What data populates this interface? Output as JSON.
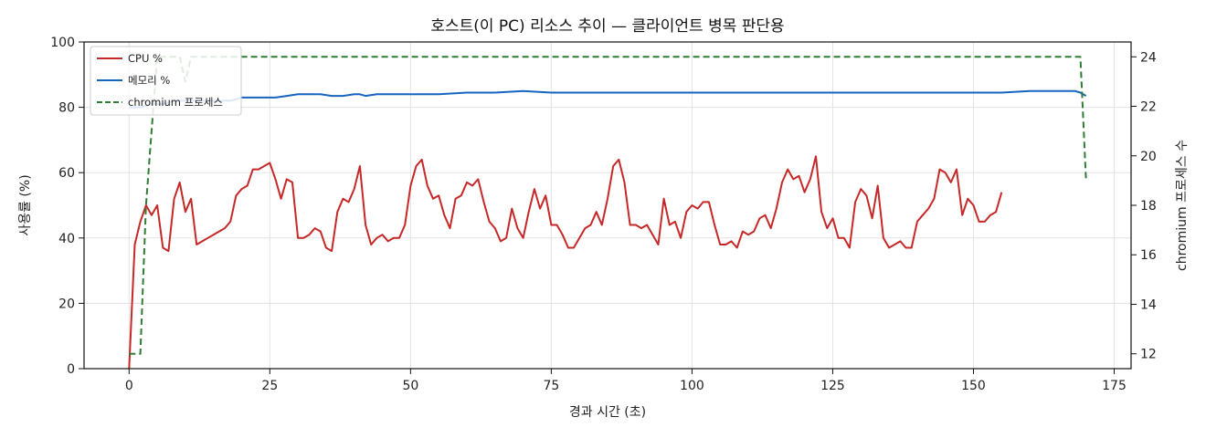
{
  "chart_data": {
    "type": "line",
    "title": "호스트(이 PC) 리소스 추이 — 클라이언트 병목 판단용",
    "xlabel": "경과 시간 (초)",
    "ylabel": "사용률 (%)",
    "y2label": "chromium 프로세스 수",
    "xlim": [
      -8,
      178
    ],
    "ylim": [
      0,
      100
    ],
    "y2lim": [
      11.4,
      24.6
    ],
    "x_ticks": [
      0,
      25,
      50,
      75,
      100,
      125,
      150,
      175
    ],
    "y_ticks": [
      0,
      20,
      40,
      60,
      80,
      100
    ],
    "y2_ticks": [
      12,
      14,
      16,
      18,
      20,
      22,
      24
    ],
    "grid": true,
    "legend_position": "top-left",
    "series": [
      {
        "name": "CPU %",
        "axis": "left",
        "style": "solid",
        "color": "#c62828",
        "points": [
          [
            0,
            0
          ],
          [
            1,
            38
          ],
          [
            2,
            45
          ],
          [
            3,
            50
          ],
          [
            4,
            47
          ],
          [
            5,
            50
          ],
          [
            6,
            37
          ],
          [
            7,
            36
          ],
          [
            8,
            52
          ],
          [
            9,
            57
          ],
          [
            10,
            48
          ],
          [
            11,
            52
          ],
          [
            12,
            38
          ],
          [
            13,
            39
          ],
          [
            14,
            40
          ],
          [
            15,
            41
          ],
          [
            16,
            42
          ],
          [
            17,
            43
          ],
          [
            18,
            45
          ],
          [
            19,
            53
          ],
          [
            20,
            55
          ],
          [
            21,
            56
          ],
          [
            22,
            61
          ],
          [
            23,
            61
          ],
          [
            24,
            62
          ],
          [
            25,
            63
          ],
          [
            26,
            58
          ],
          [
            27,
            52
          ],
          [
            28,
            58
          ],
          [
            29,
            57
          ],
          [
            30,
            40
          ],
          [
            31,
            40
          ],
          [
            32,
            41
          ],
          [
            33,
            43
          ],
          [
            34,
            42
          ],
          [
            35,
            37
          ],
          [
            36,
            36
          ],
          [
            37,
            48
          ],
          [
            38,
            52
          ],
          [
            39,
            51
          ],
          [
            40,
            55
          ],
          [
            41,
            62
          ],
          [
            42,
            44
          ],
          [
            43,
            38
          ],
          [
            44,
            40
          ],
          [
            45,
            41
          ],
          [
            46,
            39
          ],
          [
            47,
            40
          ],
          [
            48,
            40
          ],
          [
            49,
            44
          ],
          [
            50,
            56
          ],
          [
            51,
            62
          ],
          [
            52,
            64
          ],
          [
            53,
            56
          ],
          [
            54,
            52
          ],
          [
            55,
            53
          ],
          [
            56,
            47
          ],
          [
            57,
            43
          ],
          [
            58,
            52
          ],
          [
            59,
            53
          ],
          [
            60,
            57
          ],
          [
            61,
            56
          ],
          [
            62,
            58
          ],
          [
            63,
            51
          ],
          [
            64,
            45
          ],
          [
            65,
            43
          ],
          [
            66,
            39
          ],
          [
            67,
            40
          ],
          [
            68,
            49
          ],
          [
            69,
            43
          ],
          [
            70,
            40
          ],
          [
            71,
            48
          ],
          [
            72,
            55
          ],
          [
            73,
            49
          ],
          [
            74,
            53
          ],
          [
            75,
            44
          ],
          [
            76,
            44
          ],
          [
            77,
            41
          ],
          [
            78,
            37
          ],
          [
            79,
            37
          ],
          [
            80,
            40
          ],
          [
            81,
            43
          ],
          [
            82,
            44
          ],
          [
            83,
            48
          ],
          [
            84,
            44
          ],
          [
            85,
            52
          ],
          [
            86,
            62
          ],
          [
            87,
            64
          ],
          [
            88,
            57
          ],
          [
            89,
            44
          ],
          [
            90,
            44
          ],
          [
            91,
            43
          ],
          [
            92,
            44
          ],
          [
            93,
            41
          ],
          [
            94,
            38
          ],
          [
            95,
            52
          ],
          [
            96,
            44
          ],
          [
            97,
            45
          ],
          [
            98,
            40
          ],
          [
            99,
            48
          ],
          [
            100,
            50
          ],
          [
            101,
            49
          ],
          [
            102,
            51
          ],
          [
            103,
            51
          ],
          [
            104,
            44
          ],
          [
            105,
            38
          ],
          [
            106,
            38
          ],
          [
            107,
            39
          ],
          [
            108,
            37
          ],
          [
            109,
            42
          ],
          [
            110,
            41
          ],
          [
            111,
            42
          ],
          [
            112,
            46
          ],
          [
            113,
            47
          ],
          [
            114,
            43
          ],
          [
            115,
            49
          ],
          [
            116,
            57
          ],
          [
            117,
            61
          ],
          [
            118,
            58
          ],
          [
            119,
            59
          ],
          [
            120,
            54
          ],
          [
            121,
            58
          ],
          [
            122,
            65
          ],
          [
            123,
            48
          ],
          [
            124,
            43
          ],
          [
            125,
            46
          ],
          [
            126,
            40
          ],
          [
            127,
            40
          ],
          [
            128,
            37
          ],
          [
            129,
            51
          ],
          [
            130,
            55
          ],
          [
            131,
            53
          ],
          [
            132,
            46
          ],
          [
            133,
            56
          ],
          [
            134,
            40
          ],
          [
            135,
            37
          ],
          [
            136,
            38
          ],
          [
            137,
            39
          ],
          [
            138,
            37
          ],
          [
            139,
            37
          ],
          [
            140,
            45
          ],
          [
            141,
            47
          ],
          [
            142,
            49
          ],
          [
            143,
            52
          ],
          [
            144,
            61
          ],
          [
            145,
            60
          ],
          [
            146,
            57
          ],
          [
            147,
            61
          ],
          [
            148,
            47
          ],
          [
            149,
            52
          ],
          [
            150,
            50
          ],
          [
            151,
            45
          ],
          [
            152,
            45
          ],
          [
            153,
            47
          ],
          [
            154,
            48
          ],
          [
            155,
            54
          ]
        ]
      },
      {
        "name": "메모리 %",
        "axis": "left",
        "style": "solid",
        "color": "#1565c0",
        "points": [
          [
            0,
            80
          ],
          [
            2,
            80
          ],
          [
            4,
            81
          ],
          [
            6,
            81
          ],
          [
            8,
            82
          ],
          [
            10,
            82
          ],
          [
            12,
            82
          ],
          [
            14,
            82
          ],
          [
            16,
            82
          ],
          [
            18,
            82
          ],
          [
            20,
            83
          ],
          [
            22,
            83
          ],
          [
            24,
            83
          ],
          [
            26,
            83
          ],
          [
            28,
            83.5
          ],
          [
            30,
            84
          ],
          [
            32,
            84
          ],
          [
            34,
            84
          ],
          [
            36,
            83.5
          ],
          [
            38,
            83.5
          ],
          [
            40,
            84
          ],
          [
            41,
            84
          ],
          [
            42,
            83.5
          ],
          [
            44,
            84
          ],
          [
            46,
            84
          ],
          [
            48,
            84
          ],
          [
            50,
            84
          ],
          [
            55,
            84
          ],
          [
            60,
            84.5
          ],
          [
            65,
            84.5
          ],
          [
            70,
            85
          ],
          [
            75,
            84.5
          ],
          [
            80,
            84.5
          ],
          [
            85,
            84.5
          ],
          [
            90,
            84.5
          ],
          [
            95,
            84.5
          ],
          [
            100,
            84.5
          ],
          [
            105,
            84.5
          ],
          [
            110,
            84.5
          ],
          [
            115,
            84.5
          ],
          [
            120,
            84.5
          ],
          [
            125,
            84.5
          ],
          [
            130,
            84.5
          ],
          [
            135,
            84.5
          ],
          [
            140,
            84.5
          ],
          [
            145,
            84.5
          ],
          [
            150,
            84.5
          ],
          [
            155,
            84.5
          ],
          [
            160,
            85
          ],
          [
            165,
            85
          ],
          [
            168,
            85
          ],
          [
            169,
            84.5
          ],
          [
            170,
            83.5
          ]
        ]
      },
      {
        "name": "chromium 프로세스",
        "axis": "right",
        "style": "dashed",
        "color": "#2e7d32",
        "points": [
          [
            0,
            12
          ],
          [
            1,
            12
          ],
          [
            2,
            12
          ],
          [
            3,
            18
          ],
          [
            4,
            21
          ],
          [
            5,
            24
          ],
          [
            6,
            24
          ],
          [
            7,
            24
          ],
          [
            8,
            24
          ],
          [
            9,
            24
          ],
          [
            10,
            23
          ],
          [
            11,
            24
          ],
          [
            12,
            24
          ],
          [
            20,
            24
          ],
          [
            40,
            24
          ],
          [
            60,
            24
          ],
          [
            80,
            24
          ],
          [
            100,
            24
          ],
          [
            120,
            24
          ],
          [
            140,
            24
          ],
          [
            160,
            24
          ],
          [
            168,
            24
          ],
          [
            169,
            24
          ],
          [
            170,
            19
          ]
        ]
      }
    ]
  }
}
